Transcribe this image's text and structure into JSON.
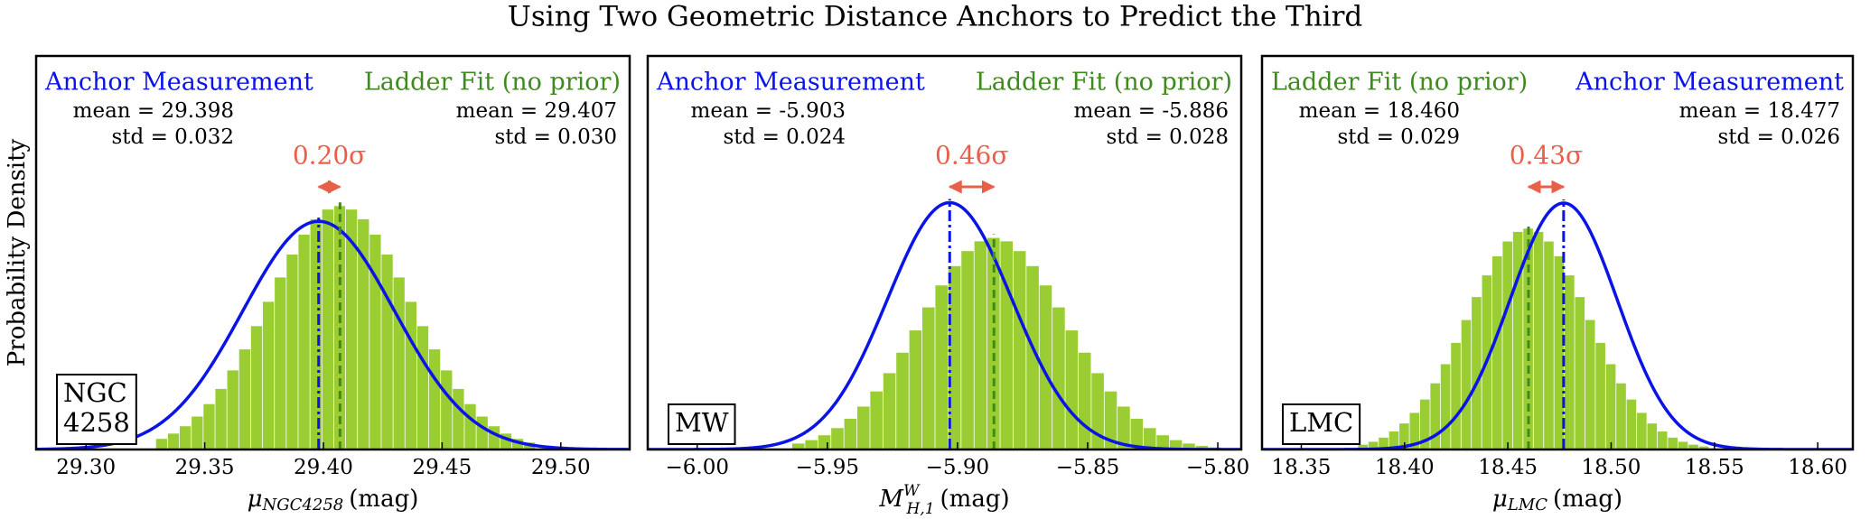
{
  "title": "Using Two Geometric Distance Anchors to Predict the Third",
  "chart_data": [
    {
      "type": "histogram",
      "ylabel": "Probability Density",
      "xlabel": {
        "symbol": "μ",
        "sub": "NGC4258",
        "unit": "(mag)"
      },
      "box_label": [
        "NGC",
        "4258"
      ],
      "annotation": {
        "text": "0.20σ",
        "color": "#e8604a"
      },
      "xlim": [
        29.279,
        29.529
      ],
      "ylim": [
        0,
        21.5
      ],
      "xticks": [
        {
          "value": 29.3,
          "label": "29.30"
        },
        {
          "value": 29.35,
          "label": "29.35"
        },
        {
          "value": 29.4,
          "label": "29.40"
        },
        {
          "value": 29.45,
          "label": "29.45"
        },
        {
          "value": 29.5,
          "label": "29.50"
        }
      ],
      "bins": [
        29.3295,
        29.3345,
        29.3395,
        29.3445,
        29.3495,
        29.3545,
        29.3595,
        29.3645,
        29.3695,
        29.3745,
        29.3795,
        29.3845,
        29.3895,
        29.3945,
        29.3995,
        29.4045,
        29.4095,
        29.4145,
        29.4195,
        29.4245,
        29.4295,
        29.4345,
        29.4395,
        29.4445,
        29.4495,
        29.4545,
        29.4595,
        29.4645,
        29.4695,
        29.4745,
        29.4795,
        29.4845,
        29.4895
      ],
      "series": [
        {
          "name": "Anchor Measurement",
          "kind": "gaussian",
          "color": "#0a14e6",
          "mean": 29.398,
          "std": 0.032,
          "mean_label": "mean = 29.398",
          "std_label": "std = 0.032"
        },
        {
          "name": "Ladder Fit (no prior)",
          "kind": "histogram",
          "color": "#9acd32",
          "line_color": "#3f8a1e",
          "mean": 29.407,
          "std": 0.03,
          "mean_label": "mean = 29.407",
          "std_label": "std = 0.030",
          "values": [
            0.58,
            0.87,
            1.27,
            1.8,
            2.48,
            3.31,
            4.32,
            5.47,
            6.74,
            8.07,
            9.4,
            10.65,
            11.74,
            12.58,
            13.11,
            13.3,
            13.11,
            12.58,
            11.74,
            10.65,
            9.4,
            8.07,
            6.74,
            5.47,
            4.32,
            3.31,
            2.48,
            1.8,
            1.27,
            0.87,
            0.58,
            0.38
          ]
        }
      ]
    },
    {
      "type": "histogram",
      "xlabel": {
        "symbol": "M",
        "sup": "W",
        "sub": "H,1",
        "unit": "(mag)"
      },
      "box_label": [
        "MW"
      ],
      "annotation": {
        "text": "0.46σ",
        "color": "#e8604a"
      },
      "xlim": [
        -6.019,
        -5.791
      ],
      "ylim": [
        0,
        26.5
      ],
      "xticks": [
        {
          "value": -6.0,
          "label": "−6.00"
        },
        {
          "value": -5.95,
          "label": "−5.95"
        },
        {
          "value": -5.9,
          "label": "−5.90"
        },
        {
          "value": -5.85,
          "label": "−5.85"
        },
        {
          "value": -5.8,
          "label": "−5.80"
        }
      ],
      "bins": [
        -5.9635,
        -5.9585,
        -5.9535,
        -5.9485,
        -5.9435,
        -5.9385,
        -5.9335,
        -5.9285,
        -5.9235,
        -5.9185,
        -5.9135,
        -5.9085,
        -5.9035,
        -5.8985,
        -5.8935,
        -5.8885,
        -5.8835,
        -5.8785,
        -5.8735,
        -5.8685,
        -5.8635,
        -5.8585,
        -5.8535,
        -5.8485,
        -5.8435,
        -5.8385,
        -5.8335,
        -5.8285,
        -5.8235,
        -5.8185,
        -5.8135,
        -5.8085,
        -5.8035,
        -5.7985
      ],
      "series": [
        {
          "name": "Anchor Measurement",
          "kind": "gaussian",
          "color": "#0a14e6",
          "mean": -5.903,
          "std": 0.024,
          "mean_label": "mean = -5.903",
          "std_label": "std = 0.024"
        },
        {
          "name": "Ladder Fit (no prior)",
          "kind": "histogram",
          "color": "#9acd32",
          "line_color": "#3f8a1e",
          "mean": -5.886,
          "std": 0.028,
          "mean_label": "mean = -5.886",
          "std_label": "std = 0.028",
          "values": [
            0.4,
            0.63,
            0.96,
            1.44,
            2.07,
            2.89,
            3.91,
            5.14,
            6.52,
            8.02,
            9.57,
            11.05,
            12.35,
            13.36,
            14.02,
            14.25,
            14.02,
            13.36,
            12.35,
            11.05,
            9.57,
            8.02,
            6.52,
            5.14,
            3.91,
            2.89,
            2.07,
            1.44,
            0.96,
            0.63,
            0.4,
            0.24,
            0.14
          ]
        }
      ]
    },
    {
      "type": "histogram",
      "xlabel": {
        "symbol": "μ",
        "sub": "LMC",
        "unit": "(mag)"
      },
      "box_label": [
        "LMC"
      ],
      "annotation": {
        "text": "0.43σ",
        "color": "#e8604a"
      },
      "xlim": [
        18.331,
        18.617
      ],
      "ylim": [
        0,
        24.5
      ],
      "xticks": [
        {
          "value": 18.35,
          "label": "18.35"
        },
        {
          "value": 18.4,
          "label": "18.40"
        },
        {
          "value": 18.45,
          "label": "18.45"
        },
        {
          "value": 18.5,
          "label": "18.50"
        },
        {
          "value": 18.55,
          "label": "18.55"
        },
        {
          "value": 18.6,
          "label": "18.60"
        }
      ],
      "bins": [
        18.3775,
        18.3825,
        18.3875,
        18.3925,
        18.3975,
        18.4025,
        18.4075,
        18.4125,
        18.4175,
        18.4225,
        18.4275,
        18.4325,
        18.4375,
        18.4425,
        18.4475,
        18.4525,
        18.4575,
        18.4625,
        18.4675,
        18.4725,
        18.4775,
        18.4825,
        18.4875,
        18.4925,
        18.4975,
        18.5025,
        18.5075,
        18.5125,
        18.5175,
        18.5225,
        18.5275,
        18.5325,
        18.5375,
        18.5425,
        18.5475
      ],
      "series": [
        {
          "name": "Ladder Fit (no prior)",
          "kind": "histogram",
          "color": "#9acd32",
          "line_color": "#3f8a1e",
          "mean": 18.46,
          "std": 0.029,
          "mean_label": "mean = 18.460",
          "std_label": "std = 0.029",
          "values": [
            0.3,
            0.48,
            0.74,
            1.12,
            1.62,
            2.28,
            3.11,
            4.12,
            5.31,
            6.64,
            8.06,
            9.49,
            10.84,
            12.03,
            12.95,
            13.55,
            13.75,
            13.55,
            12.95,
            12.03,
            10.84,
            9.49,
            8.06,
            6.64,
            5.31,
            4.12,
            3.11,
            2.28,
            1.62,
            1.12,
            0.74,
            0.48,
            0.3,
            0.19
          ]
        },
        {
          "name": "Anchor Measurement",
          "kind": "gaussian",
          "color": "#0a14e6",
          "mean": 18.477,
          "std": 0.026,
          "mean_label": "mean = 18.477",
          "std_label": "std = 0.026"
        }
      ]
    }
  ]
}
